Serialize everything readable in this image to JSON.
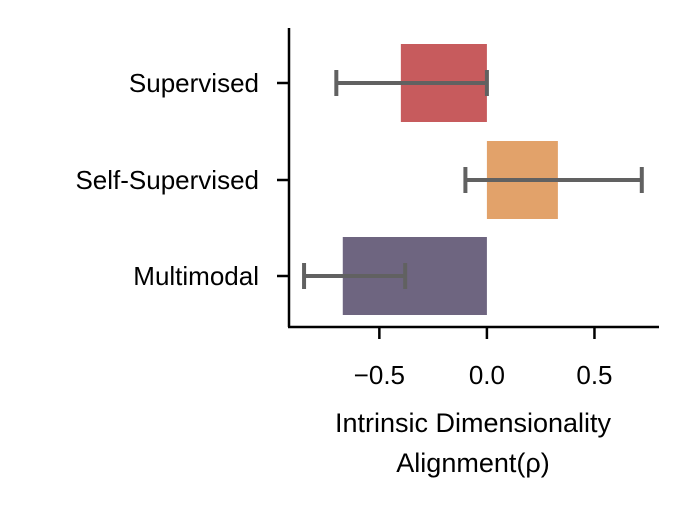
{
  "chart_data": {
    "type": "bar",
    "orientation": "horizontal",
    "categories": [
      "Supervised",
      "Self-Supervised",
      "Multimodal"
    ],
    "values": [
      -0.4,
      0.33,
      -0.67
    ],
    "error_low": [
      -0.7,
      -0.1,
      -0.85
    ],
    "error_high": [
      0.0,
      0.72,
      -0.38
    ],
    "colors": [
      "#c75b5d",
      "#e2a26a",
      "#6e6580"
    ],
    "error_color": "#616161",
    "xlim": [
      -0.92,
      0.8
    ],
    "xticks": [
      -0.5,
      0.0,
      0.5
    ],
    "xtick_labels": [
      "−0.5",
      "0.0",
      "0.5"
    ],
    "xlabel_line1": "Intrinsic Dimensionality",
    "xlabel_line2": "Alignment(ρ)",
    "title": "",
    "legend": "none",
    "grid": false
  }
}
